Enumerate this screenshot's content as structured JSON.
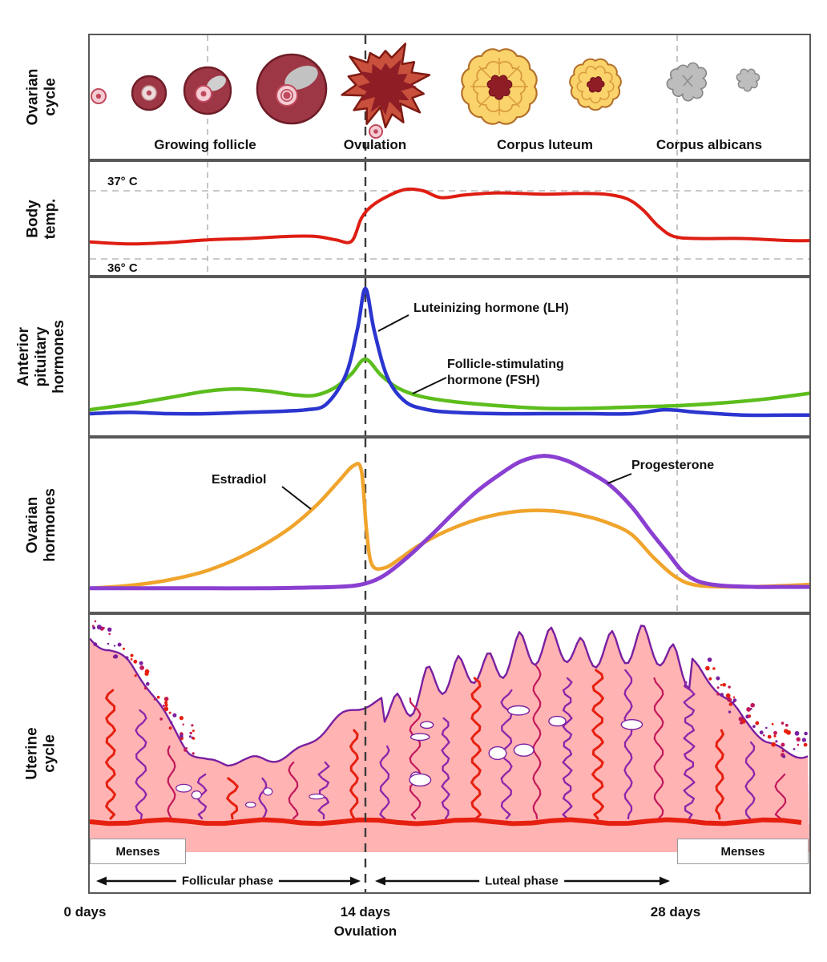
{
  "figure": {
    "description": "Menstrual cycle diagram with ovarian cycle, body temperature, pituitary hormones, ovarian hormones and uterine cycle",
    "x_axis": {
      "day0_label": "0 days",
      "day14_label": "14 days",
      "day14_sub_label": "Ovulation",
      "day28_label": "28 days"
    }
  },
  "panels": {
    "ovarian_cycle": {
      "side_label": "Ovarian\ncycle",
      "stages": [
        {
          "label": "Growing follicle"
        },
        {
          "label": "Ovulation"
        },
        {
          "label": "Corpus luteum"
        },
        {
          "label": "Corpus albicans"
        }
      ]
    },
    "body_temp": {
      "side_label": "Body\ntemp.",
      "upper_ref_label": "37° C",
      "lower_ref_label": "36° C"
    },
    "pituitary": {
      "side_label": "Anterior\npituitary\nhormones",
      "lh_label": "Luteinizing hormone (LH)",
      "fsh_label": "Follicle-stimulating\nhormone (FSH)"
    },
    "ovarian_hormones": {
      "side_label": "Ovarian\nhormones",
      "estradiol_label": "Estradiol",
      "progesterone_label": "Progesterone"
    },
    "uterine_cycle": {
      "side_label": "Uterine\ncycle",
      "menses_left_label": "Menses",
      "menses_right_label": "Menses",
      "follicular_phase_label": "Follicular phase",
      "luteal_phase_label": "Luteal phase"
    }
  },
  "colors": {
    "temperature": "#de1d13",
    "lh": "#2b35cf",
    "fsh": "#5cbd1d",
    "estradiol": "#f0a42c",
    "progesterone": "#8a3fd1",
    "endometrium_fill": "#ffb3b3",
    "endometrium_band": "#ffc9c9",
    "endometrium_outline": "#7a1fa0",
    "endometrium_vessel": "#e62010",
    "follicle_fill": "#9e3745",
    "follicle_stroke": "#6e1d27",
    "corpus_luteum_fill": "#fbd36b",
    "corpus_luteum_stroke": "#b3702a",
    "corpus_albicans_fill": "#bdbdbd",
    "guide_dark": "#3c3c3c",
    "guide_light": "#b8b8b8"
  },
  "chart_data": [
    {
      "type": "line",
      "name": "body_temperature",
      "series_label": "Body temperature",
      "x_unit": "days",
      "y_unit": "°C",
      "ylim": [
        36,
        37
      ],
      "gridlines": [
        "36 °C dashed",
        "37 °C dashed"
      ],
      "points": [
        [
          0,
          36.25
        ],
        [
          2,
          36.22
        ],
        [
          4,
          36.24
        ],
        [
          6,
          36.28
        ],
        [
          8,
          36.3
        ],
        [
          10,
          36.33
        ],
        [
          11.5,
          36.33
        ],
        [
          12.5,
          36.28
        ],
        [
          13.3,
          36.26
        ],
        [
          13.8,
          36.6
        ],
        [
          14.3,
          36.78
        ],
        [
          15,
          36.92
        ],
        [
          15.8,
          37.02
        ],
        [
          16.6,
          37.0
        ],
        [
          17.4,
          36.9
        ],
        [
          18.5,
          36.94
        ],
        [
          20,
          36.97
        ],
        [
          22,
          36.95
        ],
        [
          23.5,
          36.96
        ],
        [
          24.8,
          36.95
        ],
        [
          25.8,
          36.88
        ],
        [
          26.5,
          36.72
        ],
        [
          27.2,
          36.48
        ],
        [
          27.9,
          36.33
        ],
        [
          29,
          36.3
        ],
        [
          31,
          36.3
        ],
        [
          33,
          36.27
        ],
        [
          34.3,
          36.27
        ]
      ]
    },
    {
      "type": "line",
      "name": "lh",
      "series_label": "Luteinizing hormone (LH)",
      "x_unit": "days",
      "y_unit": "relative level 0-1",
      "points": [
        [
          0,
          0.06
        ],
        [
          2,
          0.07
        ],
        [
          4,
          0.06
        ],
        [
          6,
          0.06
        ],
        [
          8,
          0.07
        ],
        [
          10,
          0.08
        ],
        [
          11,
          0.09
        ],
        [
          12,
          0.13
        ],
        [
          13,
          0.35
        ],
        [
          13.6,
          0.7
        ],
        [
          14,
          1.0
        ],
        [
          14.4,
          0.68
        ],
        [
          15,
          0.33
        ],
        [
          15.8,
          0.15
        ],
        [
          16.8,
          0.09
        ],
        [
          18,
          0.07
        ],
        [
          20,
          0.06
        ],
        [
          22,
          0.06
        ],
        [
          24,
          0.06
        ],
        [
          26,
          0.06
        ],
        [
          27.5,
          0.09
        ],
        [
          29,
          0.07
        ],
        [
          31,
          0.05
        ],
        [
          33,
          0.05
        ],
        [
          34.3,
          0.05
        ]
      ]
    },
    {
      "type": "line",
      "name": "fsh",
      "series_label": "Follicle-stimulating hormone (FSH)",
      "x_unit": "days",
      "y_unit": "relative level 0-1",
      "points": [
        [
          0,
          0.09
        ],
        [
          2,
          0.13
        ],
        [
          4,
          0.18
        ],
        [
          6,
          0.23
        ],
        [
          7.5,
          0.245
        ],
        [
          9,
          0.23
        ],
        [
          10.5,
          0.2
        ],
        [
          11.5,
          0.2
        ],
        [
          12.5,
          0.26
        ],
        [
          13.3,
          0.36
        ],
        [
          14,
          0.47
        ],
        [
          14.7,
          0.35
        ],
        [
          15.5,
          0.25
        ],
        [
          16.5,
          0.19
        ],
        [
          18,
          0.15
        ],
        [
          20,
          0.12
        ],
        [
          22,
          0.1
        ],
        [
          24,
          0.1
        ],
        [
          26,
          0.11
        ],
        [
          28,
          0.12
        ],
        [
          30,
          0.14
        ],
        [
          32,
          0.17
        ],
        [
          34.3,
          0.22
        ]
      ]
    },
    {
      "type": "line",
      "name": "estradiol",
      "series_label": "Estradiol",
      "x_unit": "days",
      "y_unit": "relative level 0-1",
      "points": [
        [
          0,
          0.03
        ],
        [
          2,
          0.05
        ],
        [
          4,
          0.09
        ],
        [
          6,
          0.16
        ],
        [
          8,
          0.28
        ],
        [
          10,
          0.45
        ],
        [
          11.5,
          0.63
        ],
        [
          12.6,
          0.8
        ],
        [
          13.4,
          0.92
        ],
        [
          13.8,
          0.88
        ],
        [
          14.05,
          0.45
        ],
        [
          14.3,
          0.2
        ],
        [
          14.9,
          0.18
        ],
        [
          15.6,
          0.25
        ],
        [
          16.5,
          0.35
        ],
        [
          18,
          0.47
        ],
        [
          19.5,
          0.55
        ],
        [
          21,
          0.59
        ],
        [
          22.5,
          0.59
        ],
        [
          24,
          0.55
        ],
        [
          25,
          0.5
        ],
        [
          26,
          0.42
        ],
        [
          27,
          0.25
        ],
        [
          28,
          0.11
        ],
        [
          29,
          0.05
        ],
        [
          31,
          0.04
        ],
        [
          33,
          0.05
        ],
        [
          34.3,
          0.06
        ]
      ]
    },
    {
      "type": "line",
      "name": "progesterone",
      "series_label": "Progesterone",
      "x_unit": "days",
      "y_unit": "relative level 0-1",
      "points": [
        [
          0,
          0.03
        ],
        [
          3,
          0.03
        ],
        [
          6,
          0.03
        ],
        [
          9,
          0.03
        ],
        [
          11,
          0.035
        ],
        [
          12.5,
          0.04
        ],
        [
          13.5,
          0.05
        ],
        [
          14.3,
          0.08
        ],
        [
          15,
          0.14
        ],
        [
          16,
          0.27
        ],
        [
          17,
          0.42
        ],
        [
          18,
          0.58
        ],
        [
          19,
          0.73
        ],
        [
          20,
          0.85
        ],
        [
          21,
          0.95
        ],
        [
          22,
          0.99
        ],
        [
          23,
          0.96
        ],
        [
          24,
          0.88
        ],
        [
          25,
          0.78
        ],
        [
          26,
          0.62
        ],
        [
          26.8,
          0.45
        ],
        [
          27.6,
          0.29
        ],
        [
          28.3,
          0.15
        ],
        [
          29,
          0.08
        ],
        [
          30,
          0.05
        ],
        [
          31.5,
          0.04
        ],
        [
          33,
          0.04
        ],
        [
          34.3,
          0.04
        ]
      ]
    },
    {
      "type": "area",
      "name": "endometrial_thickness",
      "series_label": "Endometrium thickness (uterine cycle drawing)",
      "x_unit": "days",
      "y_unit": "relative thickness",
      "points": [
        [
          0,
          235
        ],
        [
          1,
          220
        ],
        [
          2,
          196
        ],
        [
          3,
          162
        ],
        [
          4,
          126
        ],
        [
          5,
          96
        ],
        [
          6,
          79
        ],
        [
          7,
          71
        ],
        [
          8,
          72
        ],
        [
          9,
          78
        ],
        [
          10,
          88
        ],
        [
          11,
          100
        ],
        [
          12,
          114
        ],
        [
          13,
          130
        ],
        [
          14,
          146
        ],
        [
          15,
          161
        ],
        [
          16,
          176
        ],
        [
          17,
          191
        ],
        [
          18,
          205
        ],
        [
          19,
          216
        ],
        [
          20,
          226
        ],
        [
          21,
          233
        ],
        [
          22,
          238
        ],
        [
          23,
          240
        ],
        [
          24,
          240
        ],
        [
          25,
          238
        ],
        [
          26,
          240
        ],
        [
          27,
          238
        ],
        [
          28,
          228
        ],
        [
          29,
          198
        ],
        [
          30,
          158
        ],
        [
          31,
          124
        ],
        [
          32,
          104
        ],
        [
          33,
          92
        ],
        [
          34.3,
          84
        ]
      ]
    }
  ]
}
